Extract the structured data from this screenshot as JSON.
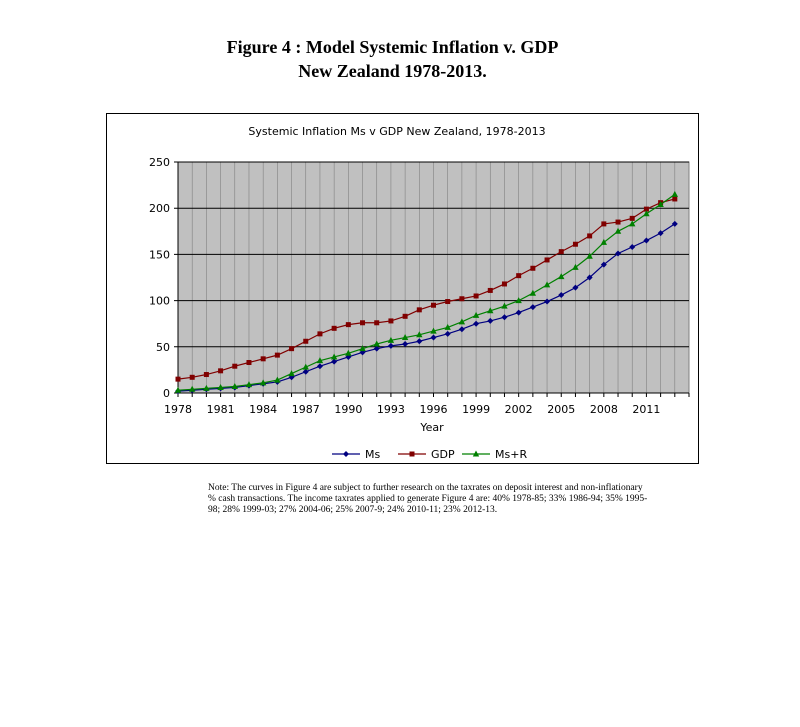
{
  "figure": {
    "title_line1": "Figure 4 : Model Systemic Inflation v. GDP",
    "title_line2": "New Zealand 1978-2013."
  },
  "note": "Note: The curves in Figure 4 are subject to further research on the taxrates on deposit interest and non-inflationary % cash transactions. The income taxrates applied to generate Figure 4 are: 40% 1978-85; 33% 1986-94; 35% 1995-98; 28% 1999-03; 27% 2004-06; 25% 2007-9; 24% 2010-11; 23% 2012-13.",
  "colors": {
    "plot_bg": "#c0c0c0",
    "ms": "#000080",
    "gdp": "#800000",
    "msr": "#008000",
    "grid": "#000000"
  },
  "chart_data": {
    "type": "line",
    "title": "Systemic Inflation Ms v GDP New Zealand, 1978-2013",
    "xlabel": "Year",
    "ylabel": "",
    "xlim": [
      1978,
      2014
    ],
    "ylim": [
      0,
      250
    ],
    "x_ticks": [
      1978,
      1981,
      1984,
      1987,
      1990,
      1993,
      1996,
      1999,
      2002,
      2005,
      2008,
      2011
    ],
    "y_ticks": [
      0,
      50,
      100,
      150,
      200,
      250
    ],
    "grid": true,
    "legend_position": "bottom",
    "x": [
      1978,
      1979,
      1980,
      1981,
      1982,
      1983,
      1984,
      1985,
      1986,
      1987,
      1988,
      1989,
      1990,
      1991,
      1992,
      1993,
      1994,
      1995,
      1996,
      1997,
      1998,
      1999,
      2000,
      2001,
      2002,
      2003,
      2004,
      2005,
      2006,
      2007,
      2008,
      2009,
      2010,
      2011,
      2012,
      2013
    ],
    "series": [
      {
        "name": "Ms",
        "color": "#000080",
        "marker": "diamond",
        "values": [
          2,
          3,
          4,
          5,
          6,
          8,
          10,
          12,
          17,
          23,
          29,
          34,
          39,
          44,
          48,
          51,
          53,
          56,
          60,
          64,
          69,
          75,
          78,
          82,
          87,
          93,
          99,
          106,
          114,
          125,
          139,
          151,
          158,
          165,
          173,
          183
        ]
      },
      {
        "name": "GDP",
        "color": "#800000",
        "marker": "square",
        "values": [
          15,
          17,
          20,
          24,
          29,
          33,
          37,
          41,
          48,
          56,
          64,
          70,
          74,
          76,
          76,
          78,
          83,
          90,
          95,
          99,
          102,
          105,
          111,
          118,
          127,
          135,
          144,
          153,
          161,
          170,
          183,
          185,
          189,
          199,
          206,
          210
        ]
      },
      {
        "name": "Ms+R",
        "color": "#008000",
        "marker": "triangle",
        "values": [
          3,
          4,
          5,
          6,
          7,
          9,
          11,
          14,
          21,
          28,
          35,
          39,
          43,
          48,
          53,
          57,
          60,
          63,
          67,
          71,
          77,
          84,
          89,
          94,
          100,
          108,
          117,
          126,
          136,
          148,
          163,
          175,
          183,
          194,
          204,
          215
        ]
      }
    ]
  }
}
